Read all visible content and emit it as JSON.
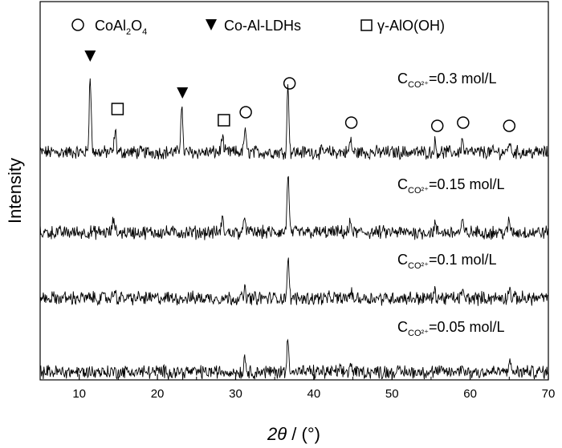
{
  "chart_data": {
    "type": "line",
    "xlabel_var": "2θ",
    "xlabel_unit": " / (°)",
    "ylabel": "Intensity",
    "xlim": [
      5,
      70
    ],
    "xticks": [
      10,
      20,
      30,
      40,
      50,
      60,
      70
    ],
    "legend": [
      {
        "marker": "circle-open",
        "text": "CoAl",
        "sub1": "2",
        "mid": "O",
        "sub2": "4"
      },
      {
        "marker": "triangle-down-filled",
        "text": "Co-Al-LDHs"
      },
      {
        "marker": "square-open",
        "text": "γ-AlO(OH)"
      }
    ],
    "series": [
      {
        "name_main": "C",
        "name_sub": "CO²⁺",
        "name_rest": "=0.3 mol/L",
        "peaks": [
          [
            11.4,
            100
          ],
          [
            14.6,
            28
          ],
          [
            23.1,
            62
          ],
          [
            28.3,
            22
          ],
          [
            31.2,
            30
          ],
          [
            36.7,
            85
          ],
          [
            44.7,
            16
          ],
          [
            55.5,
            12
          ],
          [
            59.0,
            16
          ],
          [
            65.0,
            14
          ]
        ]
      },
      {
        "name_main": "C",
        "name_sub": "CO²⁺",
        "name_rest": "=0.15 mol/L",
        "peaks": [
          [
            14.4,
            20
          ],
          [
            28.3,
            18
          ],
          [
            31.2,
            22
          ],
          [
            36.7,
            80
          ],
          [
            44.7,
            14
          ],
          [
            55.5,
            10
          ],
          [
            59.0,
            14
          ],
          [
            65.0,
            16
          ]
        ]
      },
      {
        "name_main": "C",
        "name_sub": "CO²⁺",
        "name_rest": "=0.1 mol/L",
        "peaks": [
          [
            14.5,
            14
          ],
          [
            31.2,
            15
          ],
          [
            36.7,
            68
          ],
          [
            44.7,
            12
          ],
          [
            55.5,
            10
          ],
          [
            59.0,
            12
          ],
          [
            65.0,
            18
          ]
        ]
      },
      {
        "name_main": "C",
        "name_sub": "CO²⁺",
        "name_rest": "=0.05 mol/L",
        "peaks": [
          [
            31.2,
            25
          ],
          [
            36.7,
            60
          ],
          [
            44.7,
            14
          ],
          [
            59.0,
            13
          ],
          [
            65.0,
            20
          ]
        ]
      }
    ],
    "peak_markers": [
      {
        "type": "triangle",
        "x": 11.4
      },
      {
        "type": "square",
        "x": 14.9
      },
      {
        "type": "triangle",
        "x": 23.2
      },
      {
        "type": "square",
        "x": 28.5
      },
      {
        "type": "circle",
        "x": 31.3
      },
      {
        "type": "circle",
        "x": 36.9
      },
      {
        "type": "circle",
        "x": 44.8
      },
      {
        "type": "circle",
        "x": 55.8
      },
      {
        "type": "circle",
        "x": 59.1
      },
      {
        "type": "circle",
        "x": 65.0
      }
    ]
  }
}
